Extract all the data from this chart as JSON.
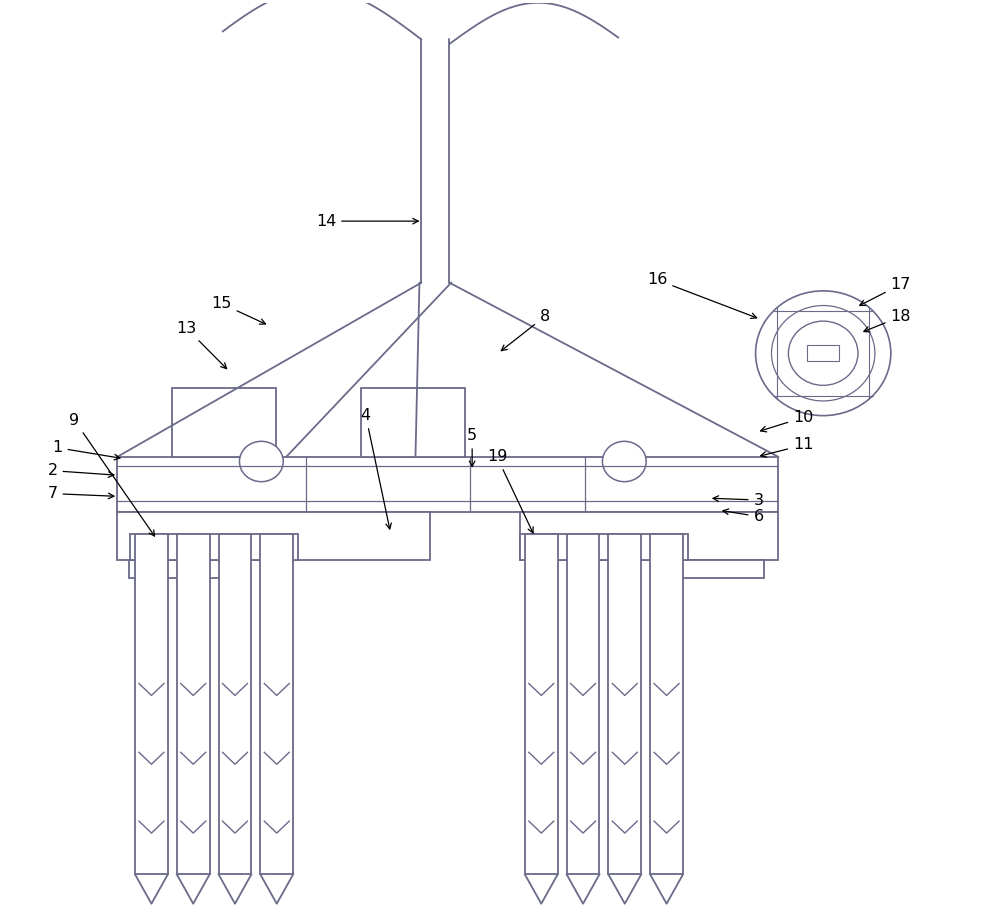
{
  "background_color": "#ffffff",
  "line_color": "#6a6a8a",
  "text_color": "#000000",
  "fig_width": 10.0,
  "fig_height": 9.23
}
